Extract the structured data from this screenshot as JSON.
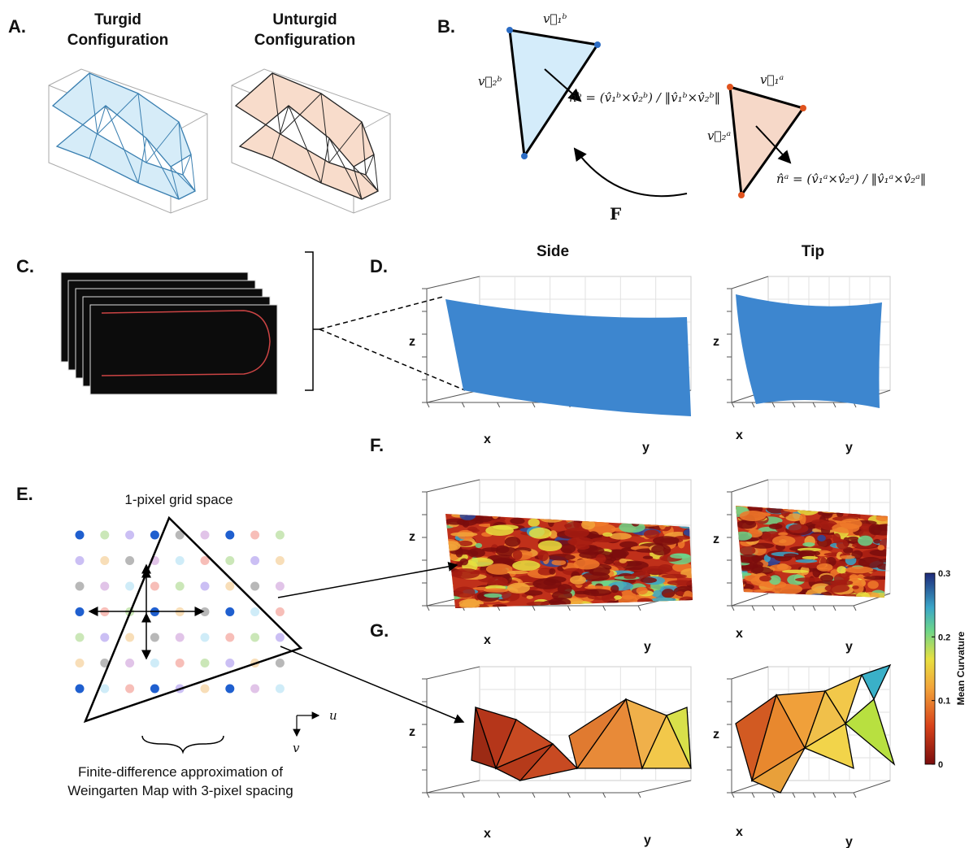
{
  "panels": {
    "A": {
      "label": "A.",
      "turgid": [
        "Turgid",
        "Configuration"
      ],
      "unturgid": [
        "Unturgid",
        "Configuration"
      ]
    },
    "B": {
      "label": "B.",
      "v1b": "v⃗₁ᵇ",
      "v2b": "v⃗₂ᵇ",
      "nb": "n̂ᵇ = (v̂₁ᵇ×v̂₂ᵇ) / ‖v̂₁ᵇ×v̂₂ᵇ‖",
      "v1a": "v⃗₁ᵃ",
      "v2a": "v⃗₂ᵃ",
      "na": "n̂ᵃ = (v̂₁ᵃ×v̂₂ᵃ) / ‖v̂₁ᵃ×v̂₂ᵃ‖",
      "map": "F"
    },
    "C": {
      "label": "C."
    },
    "D": {
      "label": "D."
    },
    "E": {
      "label": "E.",
      "title": "1-pixel grid space",
      "caption": [
        "Finite-difference approximation of",
        "Weingarten Map with 3-pixel spacing"
      ],
      "u": "u",
      "v": "v"
    },
    "F": {
      "label": "F."
    },
    "G": {
      "label": "G."
    }
  },
  "columns": {
    "side": "Side",
    "tip": "Tip"
  },
  "axes": {
    "x": "x",
    "y": "y",
    "z": "z"
  },
  "colorbar": {
    "label": "Mean Curvature",
    "lim": [
      0,
      0.3
    ],
    "ticks": [
      0,
      0.1,
      0.2,
      0.3
    ]
  }
}
